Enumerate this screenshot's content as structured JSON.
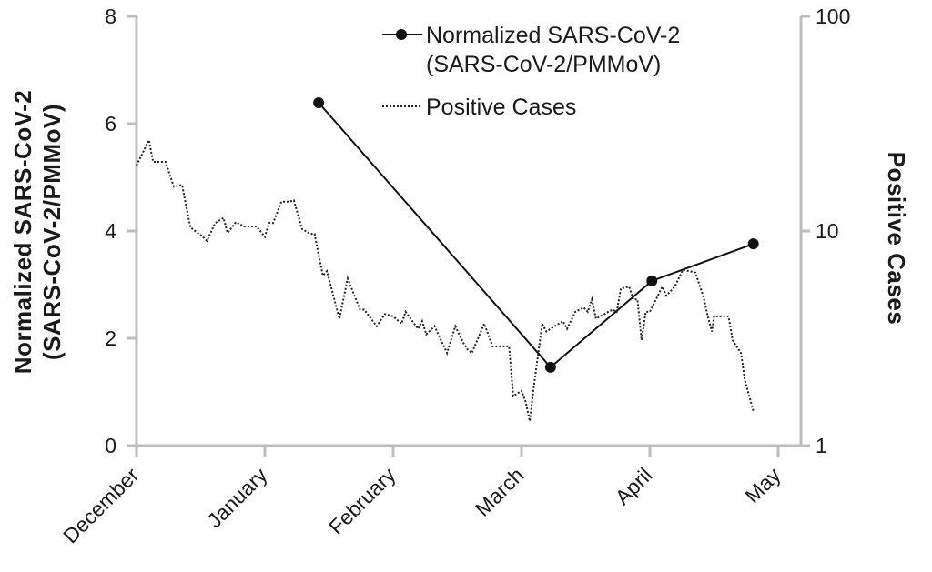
{
  "chart_data": {
    "type": "line",
    "title": "",
    "xlabel": "",
    "ylabel_left": [
      "Normalized SARS-CoV-2",
      "(SARS-CoV-2/PMMoV)"
    ],
    "ylabel_right": "Positive Cases",
    "x_units": "days since December 1",
    "xlim": [
      0,
      155
    ],
    "x_ticks": [
      {
        "day": 0,
        "label": "December"
      },
      {
        "day": 31,
        "label": "January"
      },
      {
        "day": 62,
        "label": "February"
      },
      {
        "day": 93,
        "label": "March"
      },
      {
        "day": 124,
        "label": "April"
      },
      {
        "day": 155,
        "label": "May"
      }
    ],
    "ylim_left": [
      0,
      8
    ],
    "y_ticks_left": [
      "0",
      "2",
      "4",
      "6",
      "8"
    ],
    "ylim_right": [
      1,
      100
    ],
    "y_scale_right": "log",
    "y_ticks_right": [
      "1",
      "10",
      "100"
    ],
    "legend_position": "top-right",
    "series": [
      {
        "name": "Normalized SARS-CoV-2",
        "name_line2": "(SARS-CoV-2/PMMoV)",
        "axis": "left",
        "style": "solid-with-markers",
        "color": "#111111",
        "points": [
          [
            44,
            6.39
          ],
          [
            100,
            1.46
          ],
          [
            124.5,
            3.07
          ],
          [
            149,
            3.76
          ]
        ]
      },
      {
        "name": "Positive Cases",
        "axis": "right",
        "style": "dotted",
        "color": "#222222",
        "points": [
          [
            0,
            20.2
          ],
          [
            3,
            26.5
          ],
          [
            4,
            21.0
          ],
          [
            7,
            21.0
          ],
          [
            9,
            16.1
          ],
          [
            11,
            16.4
          ],
          [
            13,
            10.4
          ],
          [
            16,
            9.4
          ],
          [
            17,
            9.0
          ],
          [
            19,
            10.9
          ],
          [
            21,
            11.5
          ],
          [
            22,
            9.8
          ],
          [
            24,
            11.0
          ],
          [
            26,
            10.5
          ],
          [
            29,
            10.5
          ],
          [
            31,
            9.4
          ],
          [
            32,
            10.9
          ],
          [
            33,
            10.9
          ],
          [
            35,
            13.7
          ],
          [
            37,
            13.7
          ],
          [
            38,
            13.9
          ],
          [
            40,
            10.2
          ],
          [
            42,
            9.7
          ],
          [
            43,
            9.7
          ],
          [
            45,
            6.2
          ],
          [
            46,
            6.5
          ],
          [
            49,
            3.9
          ],
          [
            51,
            6.0
          ],
          [
            54,
            4.3
          ],
          [
            55,
            4.3
          ],
          [
            58,
            3.6
          ],
          [
            60,
            4.1
          ],
          [
            62,
            4.0
          ],
          [
            64,
            3.7
          ],
          [
            65,
            4.2
          ],
          [
            68,
            3.5
          ],
          [
            69,
            3.8
          ],
          [
            70,
            3.3
          ],
          [
            72,
            3.6
          ],
          [
            75,
            2.7
          ],
          [
            77,
            3.6
          ],
          [
            79,
            3.0
          ],
          [
            80,
            2.8
          ],
          [
            81,
            2.7
          ],
          [
            84,
            3.7
          ],
          [
            86,
            2.9
          ],
          [
            89,
            2.9
          ],
          [
            90,
            2.9
          ],
          [
            91,
            1.7
          ],
          [
            93,
            1.8
          ],
          [
            94,
            1.6
          ],
          [
            95,
            1.3
          ],
          [
            96,
            1.9
          ],
          [
            98,
            3.7
          ],
          [
            99,
            3.4
          ],
          [
            102,
            3.7
          ],
          [
            103,
            3.8
          ],
          [
            104,
            3.5
          ],
          [
            106,
            4.2
          ],
          [
            108,
            4.4
          ],
          [
            109,
            4.2
          ],
          [
            110,
            4.8
          ],
          [
            111,
            3.9
          ],
          [
            114,
            4.2
          ],
          [
            115,
            4.3
          ],
          [
            116,
            4.2
          ],
          [
            117,
            5.4
          ],
          [
            119,
            5.5
          ],
          [
            120,
            4.8
          ],
          [
            121,
            4.8
          ],
          [
            122,
            3.1
          ],
          [
            123,
            4.2
          ],
          [
            124,
            4.2
          ],
          [
            127,
            5.5
          ],
          [
            128,
            5.0
          ],
          [
            130,
            5.5
          ],
          [
            132,
            6.6
          ],
          [
            135,
            6.4
          ],
          [
            137,
            4.9
          ],
          [
            138,
            4.0
          ],
          [
            139,
            3.4
          ],
          [
            139.5,
            4.0
          ],
          [
            140,
            4.0
          ],
          [
            143,
            4.0
          ],
          [
            144,
            3.1
          ],
          [
            146,
            2.7
          ],
          [
            147,
            2.0
          ],
          [
            149,
            1.45
          ]
        ]
      }
    ]
  }
}
